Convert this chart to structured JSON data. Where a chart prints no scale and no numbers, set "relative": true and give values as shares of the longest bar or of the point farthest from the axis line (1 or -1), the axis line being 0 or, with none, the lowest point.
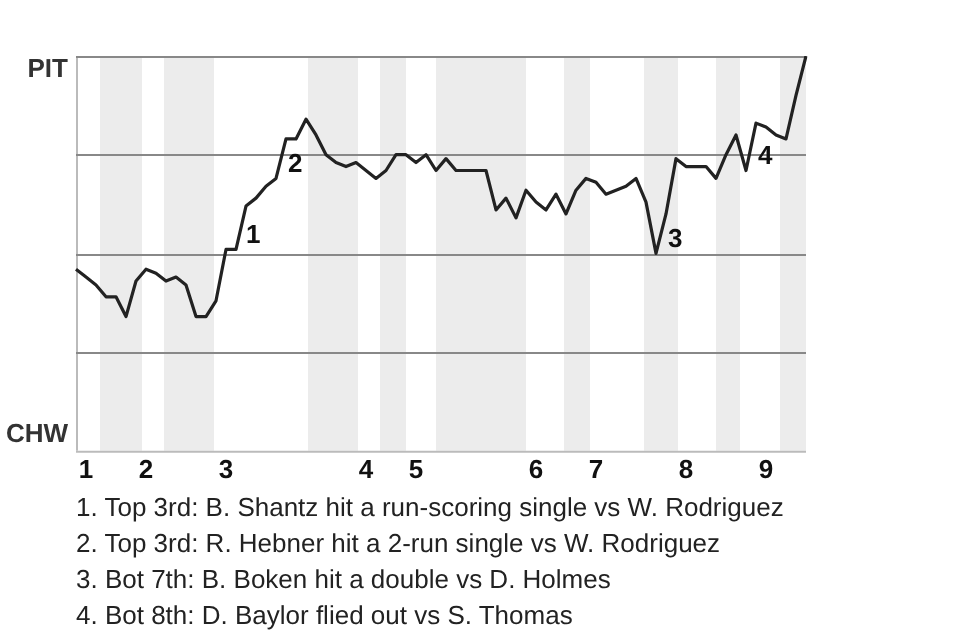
{
  "chart_data": {
    "type": "line",
    "relative": true,
    "categories": [
      null,
      "1",
      null,
      null,
      null,
      null,
      null,
      "2",
      null,
      null,
      null,
      null,
      null,
      null,
      null,
      "3",
      null,
      null,
      null,
      null,
      null,
      null,
      null,
      null,
      null,
      null,
      null,
      null,
      null,
      "4",
      null,
      null,
      null,
      null,
      "5",
      null,
      null,
      null,
      null,
      null,
      null,
      null,
      null,
      null,
      null,
      null,
      "6",
      null,
      null,
      null,
      null,
      null,
      "7",
      null,
      null,
      null,
      null,
      null,
      null,
      null,
      null,
      "8",
      null,
      null,
      null,
      null,
      null,
      null,
      null,
      "9",
      null,
      null,
      null,
      null
    ],
    "series": [
      {
        "color": "#222222",
        "values": [
          0.46,
          0.44,
          0.42,
          0.39,
          0.39,
          0.34,
          0.43,
          0.46,
          0.45,
          0.43,
          0.44,
          0.42,
          0.34,
          0.34,
          0.38,
          0.51,
          0.51,
          0.62,
          0.64,
          0.67,
          0.69,
          0.79,
          0.79,
          0.84,
          0.8,
          0.75,
          0.73,
          0.72,
          0.73,
          0.71,
          0.69,
          0.71,
          0.75,
          0.75,
          0.73,
          0.75,
          0.71,
          0.74,
          0.71,
          0.71,
          0.71,
          0.71,
          0.61,
          0.64,
          0.59,
          0.66,
          0.63,
          0.61,
          0.65,
          0.6,
          0.66,
          0.69,
          0.68,
          0.65,
          0.66,
          0.67,
          0.69,
          0.63,
          0.5,
          0.6,
          0.74,
          0.72,
          0.72,
          0.72,
          0.69,
          0.75,
          0.8,
          0.71,
          0.83,
          0.82,
          0.8,
          0.79,
          0.9,
          1.0
        ]
      }
    ],
    "marker": "none",
    "line_style": "solid",
    "ref_lines": [
      {
        "axis": "y",
        "value": 0.25,
        "color": "#888888"
      },
      {
        "axis": "y",
        "value": 0.5,
        "color": "#888888"
      },
      {
        "axis": "y",
        "value": 0.75,
        "color": "#888888"
      },
      {
        "axis": "y",
        "value": 1,
        "color": "#888888"
      }
    ],
    "annotations": [
      "PIT",
      "CHW",
      "1",
      "2",
      "3",
      "4",
      "1. Top 3rd: B. Shantz hit a run-scoring single vs W. Rodriguez",
      "2. Top 3rd: R. Hebner hit a 2-run single vs W. Rodriguez",
      "3. Bot 7th: B. Boken hit a double vs D. Holmes",
      "4. Bot 8th: D. Baylor flied out vs S. Thomas"
    ]
  }
}
